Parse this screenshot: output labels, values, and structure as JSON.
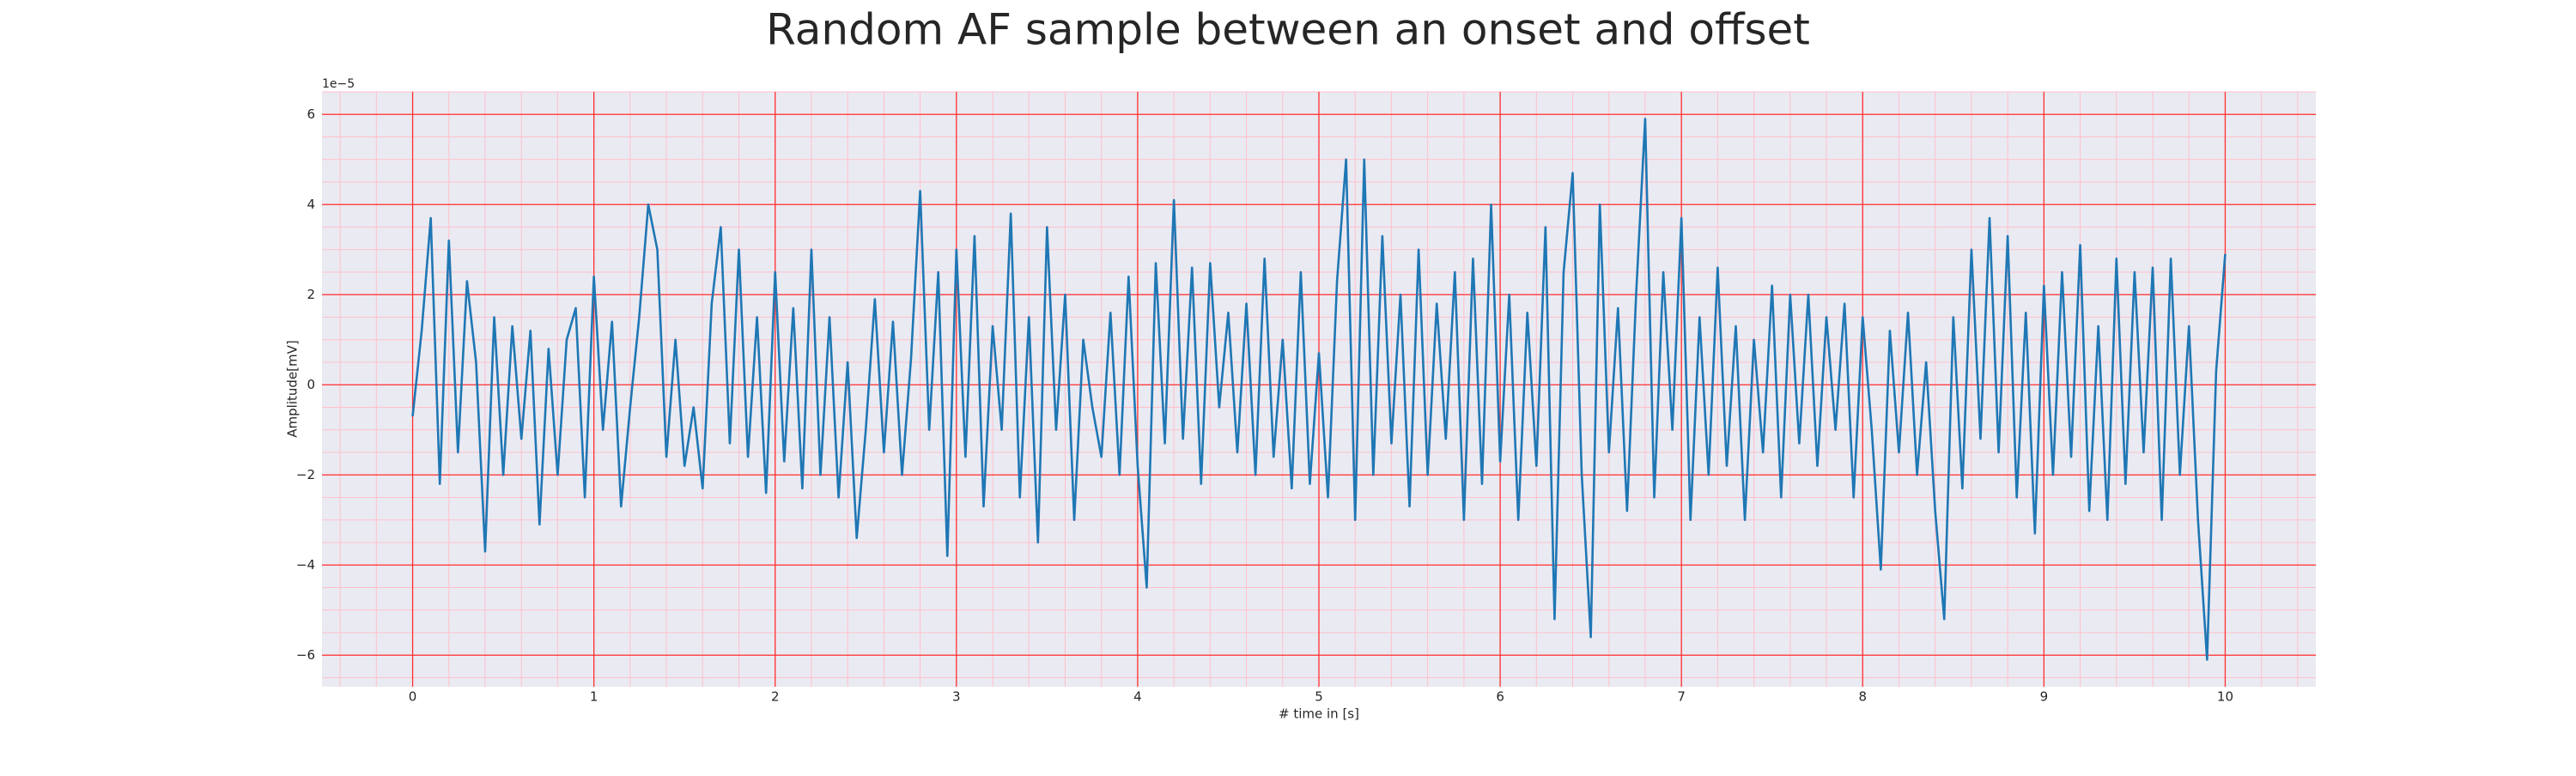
{
  "chart_data": {
    "type": "line",
    "title": "Random AF sample between an onset and offset",
    "xlabel": "# time in [s]",
    "ylabel": "Amplitude[mV]",
    "offset_label": "1e−5",
    "color": "#1f77b4",
    "grid": true,
    "minor_xstep": 0.2,
    "minor_ystep": 0.5,
    "xlim": [
      -0.5,
      10.5
    ],
    "ylim": [
      -6.7,
      6.5
    ],
    "xticks": [
      0,
      1,
      2,
      3,
      4,
      5,
      6,
      7,
      8,
      9,
      10
    ],
    "yticks": [
      {
        "value": -6,
        "label": "−6"
      },
      {
        "value": -4,
        "label": "−4"
      },
      {
        "value": -2,
        "label": "−2"
      },
      0,
      2,
      4,
      6
    ],
    "x": [
      0,
      0.05,
      0.1,
      0.15,
      0.2,
      0.25,
      0.3,
      0.35,
      0.4,
      0.45,
      0.5,
      0.55,
      0.6,
      0.65,
      0.7,
      0.75,
      0.8,
      0.85,
      0.9,
      0.95,
      1,
      1.05,
      1.1,
      1.15,
      1.2,
      1.25,
      1.3,
      1.35,
      1.4,
      1.45,
      1.5,
      1.55,
      1.6,
      1.65,
      1.7,
      1.75,
      1.8,
      1.85,
      1.9,
      1.95,
      2,
      2.05,
      2.1,
      2.15,
      2.2,
      2.25,
      2.3,
      2.35,
      2.4,
      2.45,
      2.5,
      2.55,
      2.6,
      2.65,
      2.7,
      2.75,
      2.8,
      2.85,
      2.9,
      2.95,
      3,
      3.05,
      3.1,
      3.15,
      3.2,
      3.25,
      3.3,
      3.35,
      3.4,
      3.45,
      3.5,
      3.55,
      3.6,
      3.65,
      3.7,
      3.75,
      3.8,
      3.85,
      3.9,
      3.95,
      4,
      4.05,
      4.1,
      4.15,
      4.2,
      4.25,
      4.3,
      4.35,
      4.4,
      4.45,
      4.5,
      4.55,
      4.6,
      4.65,
      4.7,
      4.75,
      4.8,
      4.85,
      4.9,
      4.95,
      5,
      5.05,
      5.1,
      5.15,
      5.2,
      5.25,
      5.3,
      5.35,
      5.4,
      5.45,
      5.5,
      5.55,
      5.6,
      5.65,
      5.7,
      5.75,
      5.8,
      5.85,
      5.9,
      5.95,
      6,
      6.05,
      6.1,
      6.15,
      6.2,
      6.25,
      6.3,
      6.35,
      6.4,
      6.45,
      6.5,
      6.55,
      6.6,
      6.65,
      6.7,
      6.75,
      6.8,
      6.85,
      6.9,
      6.95,
      7,
      7.05,
      7.1,
      7.15,
      7.2,
      7.25,
      7.3,
      7.35,
      7.4,
      7.45,
      7.5,
      7.55,
      7.6,
      7.65,
      7.7,
      7.75,
      7.8,
      7.85,
      7.9,
      7.95,
      8,
      8.05,
      8.1,
      8.15,
      8.2,
      8.25,
      8.3,
      8.35,
      8.4,
      8.45,
      8.5,
      8.55,
      8.6,
      8.65,
      8.7,
      8.75,
      8.8,
      8.85,
      8.9,
      8.95,
      9,
      9.05,
      9.1,
      9.15,
      9.2,
      9.25,
      9.3,
      9.35,
      9.4,
      9.45,
      9.5,
      9.55,
      9.6,
      9.65,
      9.7,
      9.75,
      9.8,
      9.85,
      9.9,
      9.95,
      10
    ],
    "values": [
      -0.7,
      1.2,
      3.7,
      -2.2,
      3.2,
      -1.5,
      2.3,
      0.5,
      -3.7,
      1.5,
      -2.0,
      1.3,
      -1.2,
      1.2,
      -3.1,
      0.8,
      -2.0,
      1.0,
      1.7,
      -2.5,
      2.4,
      -1.0,
      1.4,
      -2.7,
      -0.5,
      1.5,
      4.0,
      3.0,
      -1.6,
      1.0,
      -1.8,
      -0.5,
      -2.3,
      1.8,
      3.5,
      -1.3,
      3.0,
      -1.6,
      1.5,
      -2.4,
      2.5,
      -1.7,
      1.7,
      -2.3,
      3.0,
      -2.0,
      1.5,
      -2.5,
      0.5,
      -3.4,
      -1.0,
      1.9,
      -1.5,
      1.4,
      -2.0,
      0.6,
      4.3,
      -1.0,
      2.5,
      -3.8,
      3.0,
      -1.6,
      3.3,
      -2.7,
      1.3,
      -1.0,
      3.8,
      -2.5,
      1.5,
      -3.5,
      3.5,
      -1.0,
      2.0,
      -3.0,
      1.0,
      -0.5,
      -1.6,
      1.6,
      -2.0,
      2.4,
      -1.8,
      -4.5,
      2.7,
      -1.3,
      4.1,
      -1.2,
      2.6,
      -2.2,
      2.7,
      -0.5,
      1.6,
      -1.5,
      1.8,
      -2.0,
      2.8,
      -1.6,
      1.0,
      -2.3,
      2.5,
      -2.2,
      0.7,
      -2.5,
      2.3,
      5.0,
      -3.0,
      5.0,
      -2.0,
      3.3,
      -1.3,
      2.0,
      -2.7,
      3.0,
      -2.0,
      1.8,
      -1.2,
      2.5,
      -3.0,
      2.8,
      -2.2,
      4.0,
      -1.7,
      2.0,
      -3.0,
      1.6,
      -1.8,
      3.5,
      -5.2,
      2.5,
      4.7,
      -2.0,
      -5.6,
      4.0,
      -1.5,
      1.7,
      -2.8,
      2.0,
      5.9,
      -2.5,
      2.5,
      -1.0,
      3.7,
      -3.0,
      1.5,
      -2.0,
      2.6,
      -1.8,
      1.3,
      -3.0,
      1.0,
      -1.5,
      2.2,
      -2.5,
      2.0,
      -1.3,
      2.0,
      -1.8,
      1.5,
      -1.0,
      1.8,
      -2.5,
      1.5,
      -1.0,
      -4.1,
      1.2,
      -1.5,
      1.6,
      -2.0,
      0.5,
      -2.8,
      -5.2,
      1.5,
      -2.3,
      3.0,
      -1.2,
      3.7,
      -1.5,
      3.3,
      -2.5,
      1.6,
      -3.3,
      2.2,
      -2.0,
      2.5,
      -1.6,
      3.1,
      -2.8,
      1.3,
      -3.0,
      2.8,
      -2.2,
      2.5,
      -1.5,
      2.6,
      -3.0,
      2.8,
      -2.0,
      1.3,
      -3.0,
      -6.1,
      0.3,
      2.9
    ]
  }
}
